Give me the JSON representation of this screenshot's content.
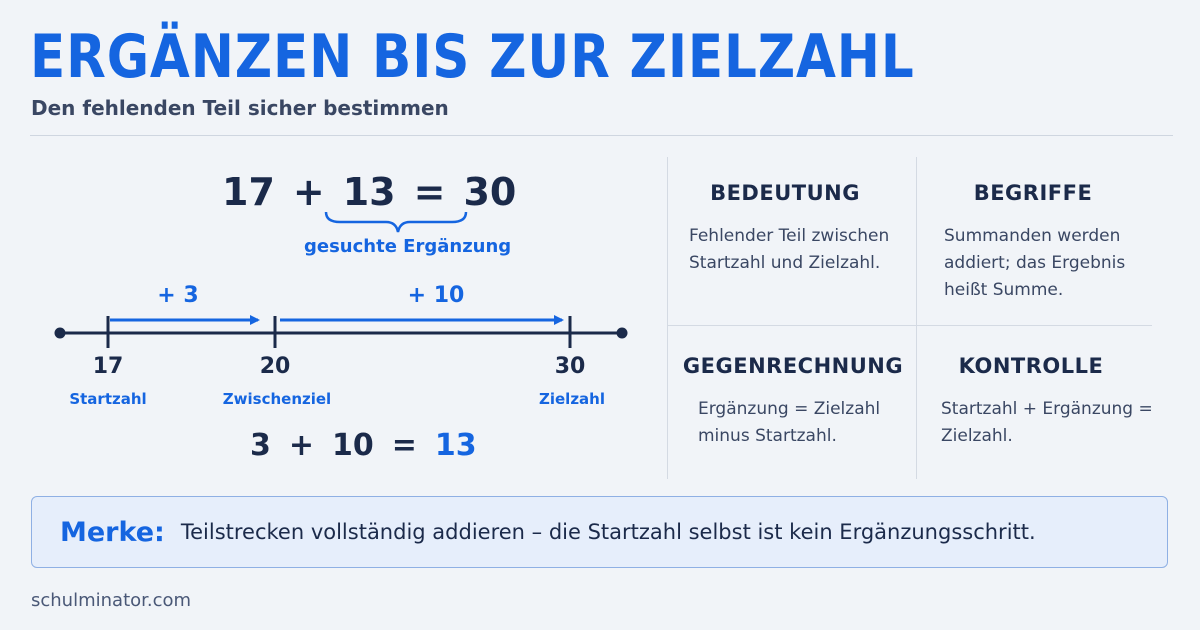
{
  "title": "ERGÄNZEN BIS ZUR ZIELZAHL",
  "subtitle": "Den fehlenden Teil sicher bestimmen",
  "equation": {
    "a": "17",
    "plus": "+",
    "b": "13",
    "eq": "=",
    "c": "30",
    "brace_label": "gesuchte Ergänzung"
  },
  "number_line": {
    "points": [
      {
        "value": "17",
        "name": "Startzahl"
      },
      {
        "value": "20",
        "name": "Zwischenziel"
      },
      {
        "value": "30",
        "name": "Zielzahl"
      }
    ],
    "steps": [
      {
        "label": "+ 3"
      },
      {
        "label": "+ 10"
      }
    ]
  },
  "bottom_equation": {
    "a": "3",
    "plus": "+",
    "b": "10",
    "eq": "=",
    "result": "13"
  },
  "cards": {
    "bedeutung": {
      "title": "BEDEUTUNG",
      "text": "Fehlender Teil zwischen Startzahl und Zielzahl."
    },
    "begriffe": {
      "title": "BEGRIFFE",
      "text": "Summanden werden addiert; das Ergebnis heißt Summe."
    },
    "gegenrechnung": {
      "title": "GEGENRECHNUNG",
      "text": "Ergänzung = Zielzahl minus Startzahl."
    },
    "kontrolle": {
      "title": "KONTROLLE",
      "text": "Startzahl + Ergänzung = Zielzahl."
    }
  },
  "merke": {
    "label": "Merke:",
    "text": "Teilstrecken vollständig addieren – die Startzahl selbst ist kein Ergänzungsschritt."
  },
  "footer": "schulminator.com",
  "colors": {
    "accent": "#1565e0",
    "dark": "#1b2a4a",
    "background": "#f1f4f8"
  }
}
